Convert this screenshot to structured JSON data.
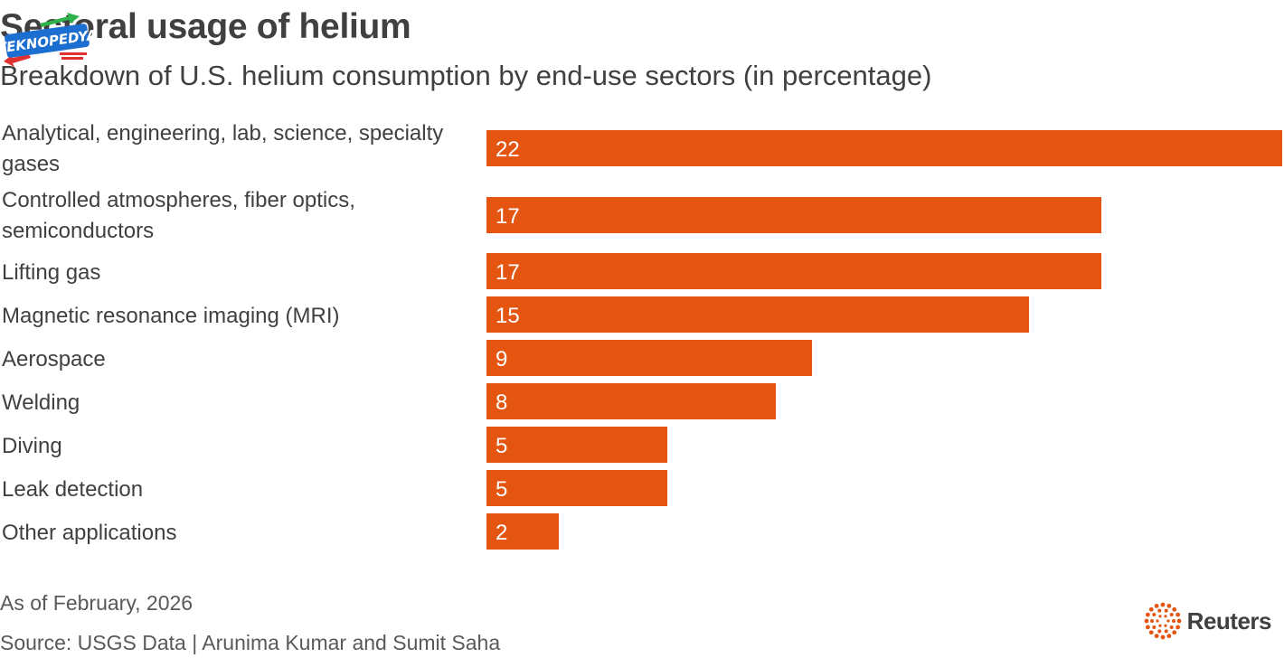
{
  "header": {
    "title": "Sectoral usage of helium",
    "subtitle": "Breakdown of U.S. helium consumption by end-use sectors (in percentage)"
  },
  "watermark": {
    "text": "TEKNOPEDYA",
    "icon": "teknopedya-logo"
  },
  "colors": {
    "bar": "#e35511",
    "label_text": "#404040",
    "value_text": "#ffffff"
  },
  "chart_data": {
    "type": "bar",
    "orientation": "horizontal",
    "title": "Sectoral usage of helium",
    "subtitle": "Breakdown of U.S. helium consumption by end-use sectors (in percentage)",
    "categories": [
      [
        "Analytical, engineering, lab, science, specialty",
        "gases"
      ],
      [
        "Controlled atmospheres, fiber optics,",
        "semiconductors"
      ],
      [
        "Lifting gas"
      ],
      [
        "Magnetic resonance imaging (MRI)"
      ],
      [
        "Aerospace"
      ],
      [
        "Welding"
      ],
      [
        "Diving"
      ],
      [
        "Leak detection"
      ],
      [
        "Other applications"
      ]
    ],
    "values": [
      22,
      17,
      17,
      15,
      9,
      8,
      5,
      5,
      2
    ],
    "xlim": [
      0,
      22
    ],
    "grid": false,
    "legend": "none",
    "data_labels": "inside-left"
  },
  "footer": {
    "note": "As of February, 2026",
    "source": "Source: USGS Data | Arunima Kumar and Sumit Saha",
    "brand": "Reuters",
    "brand_icon": "reuters-dot-logo"
  }
}
